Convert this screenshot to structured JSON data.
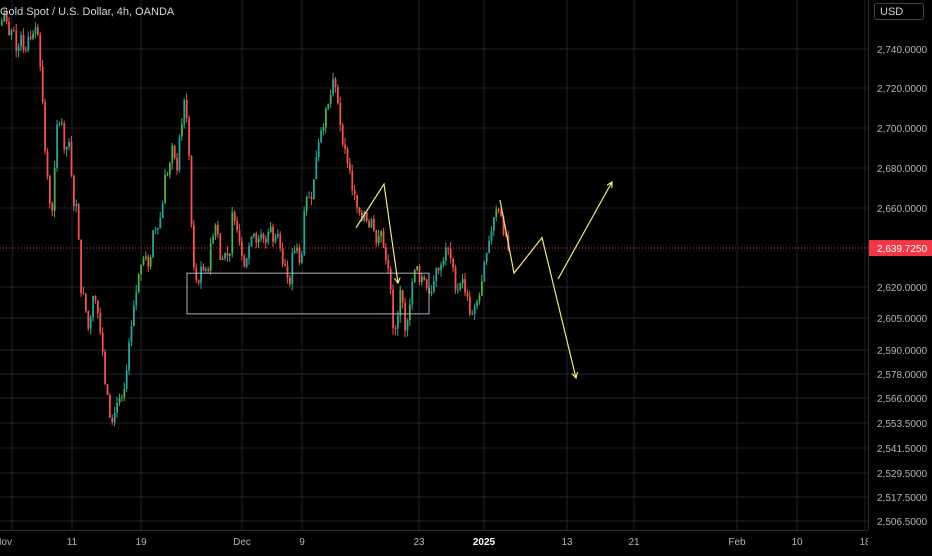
{
  "header": {
    "title": "Gold Spot / U.S. Dollar, 4h, OANDA"
  },
  "price_axis": {
    "currency": "USD"
  },
  "colors": {
    "up": "#26a69a",
    "up_green": "#4caf50",
    "down": "#ef5350",
    "drawing": "#f2e880",
    "current_price_bg": "#f23645",
    "grid": "#1e222d"
  },
  "chart_data": {
    "type": "candlestick",
    "title": "Gold Spot / U.S. Dollar, 4h, OANDA",
    "y_tick_labels": [
      "2,740.0000",
      "2,720.0000",
      "2,700.0000",
      "2,680.0000",
      "2,660.0000",
      "2,620.0000",
      "2,605.0000",
      "2,590.0000",
      "2,578.0000",
      "2,566.0000",
      "2,553.5000",
      "2,541.5000",
      "2,529.5000",
      "2,517.5000",
      "2,506.5000"
    ],
    "y_tick_values": [
      2740,
      2720,
      2700,
      2680,
      2660,
      2620,
      2605,
      2590,
      2578,
      2566,
      2553.5,
      2541.5,
      2529.5,
      2517.5,
      2506.5
    ],
    "current_price": {
      "value": 2639.725,
      "label": "2,639.7250"
    },
    "x_tick_labels": [
      "Nov",
      "11",
      "19",
      "Dec",
      "9",
      "23",
      "2025",
      "13",
      "21",
      "Feb",
      "10",
      "18"
    ],
    "x_tick_bold": [
      false,
      false,
      false,
      false,
      false,
      false,
      true,
      false,
      false,
      false,
      false,
      false
    ],
    "ylim": [
      2500,
      2760
    ],
    "price_path": [
      [
        0,
        2752
      ],
      [
        4,
        2760
      ],
      [
        8,
        2745
      ],
      [
        12,
        2752
      ],
      [
        16,
        2740
      ],
      [
        20,
        2748
      ],
      [
        24,
        2738
      ],
      [
        28,
        2750
      ],
      [
        32,
        2745
      ],
      [
        36,
        2755
      ],
      [
        40,
        2730
      ],
      [
        44,
        2690
      ],
      [
        48,
        2665
      ],
      [
        52,
        2660
      ],
      [
        56,
        2700
      ],
      [
        60,
        2705
      ],
      [
        64,
        2690
      ],
      [
        68,
        2692
      ],
      [
        72,
        2665
      ],
      [
        76,
        2660
      ],
      [
        80,
        2620
      ],
      [
        84,
        2612
      ],
      [
        88,
        2598
      ],
      [
        92,
        2618
      ],
      [
        96,
        2612
      ],
      [
        100,
        2596
      ],
      [
        104,
        2575
      ],
      [
        108,
        2560
      ],
      [
        112,
        2552
      ],
      [
        116,
        2566
      ],
      [
        120,
        2562
      ],
      [
        124,
        2570
      ],
      [
        128,
        2590
      ],
      [
        132,
        2605
      ],
      [
        136,
        2620
      ],
      [
        140,
        2632
      ],
      [
        144,
        2640
      ],
      [
        148,
        2628
      ],
      [
        152,
        2648
      ],
      [
        156,
        2652
      ],
      [
        160,
        2655
      ],
      [
        164,
        2675
      ],
      [
        168,
        2680
      ],
      [
        172,
        2690
      ],
      [
        176,
        2680
      ],
      [
        180,
        2700
      ],
      [
        184,
        2715
      ],
      [
        188,
        2690
      ],
      [
        192,
        2630
      ],
      [
        196,
        2622
      ],
      [
        200,
        2628
      ],
      [
        204,
        2625
      ],
      [
        208,
        2632
      ],
      [
        212,
        2648
      ],
      [
        216,
        2655
      ],
      [
        220,
        2630
      ],
      [
        224,
        2640
      ],
      [
        228,
        2632
      ],
      [
        232,
        2660
      ],
      [
        236,
        2652
      ],
      [
        240,
        2640
      ],
      [
        244,
        2632
      ],
      [
        248,
        2640
      ],
      [
        252,
        2650
      ],
      [
        256,
        2642
      ],
      [
        260,
        2648
      ],
      [
        264,
        2640
      ],
      [
        268,
        2652
      ],
      [
        272,
        2645
      ],
      [
        276,
        2650
      ],
      [
        280,
        2638
      ],
      [
        284,
        2630
      ],
      [
        288,
        2618
      ],
      [
        292,
        2638
      ],
      [
        296,
        2640
      ],
      [
        300,
        2632
      ],
      [
        304,
        2660
      ],
      [
        308,
        2666
      ],
      [
        312,
        2668
      ],
      [
        316,
        2690
      ],
      [
        320,
        2700
      ],
      [
        324,
        2705
      ],
      [
        328,
        2712
      ],
      [
        332,
        2722
      ],
      [
        336,
        2718
      ],
      [
        340,
        2700
      ],
      [
        344,
        2688
      ],
      [
        348,
        2682
      ],
      [
        352,
        2668
      ],
      [
        356,
        2660
      ],
      [
        360,
        2652
      ],
      [
        364,
        2660
      ],
      [
        368,
        2650
      ],
      [
        372,
        2655
      ],
      [
        376,
        2640
      ],
      [
        380,
        2648
      ],
      [
        384,
        2638
      ],
      [
        388,
        2630
      ],
      [
        392,
        2600
      ],
      [
        396,
        2598
      ],
      [
        400,
        2625
      ],
      [
        404,
        2600
      ],
      [
        408,
        2610
      ],
      [
        412,
        2625
      ],
      [
        416,
        2630
      ],
      [
        420,
        2622
      ],
      [
        424,
        2625
      ],
      [
        428,
        2618
      ],
      [
        432,
        2620
      ],
      [
        436,
        2628
      ],
      [
        440,
        2630
      ],
      [
        444,
        2638
      ],
      [
        448,
        2638
      ],
      [
        452,
        2628
      ],
      [
        456,
        2618
      ],
      [
        460,
        2625
      ],
      [
        464,
        2620
      ],
      [
        468,
        2610
      ],
      [
        472,
        2605
      ],
      [
        476,
        2612
      ],
      [
        480,
        2618
      ],
      [
        484,
        2632
      ],
      [
        488,
        2640
      ],
      [
        492,
        2655
      ],
      [
        496,
        2662
      ],
      [
        500,
        2658
      ],
      [
        504,
        2645
      ],
      [
        508,
        2638
      ]
    ],
    "drawings": {
      "box": {
        "t0": 187,
        "t1": 429,
        "high": 2627,
        "low": 2607
      },
      "polyline_top": [
        [
          356,
          2650
        ],
        [
          384,
          2672
        ],
        [
          398,
          2622
        ]
      ],
      "polyline_right": [
        [
          500,
          2664
        ],
        [
          514,
          2627
        ],
        [
          542,
          2645
        ],
        [
          576,
          2576
        ]
      ],
      "polyline_right2": [
        [
          558,
          2624
        ],
        [
          612,
          2673
        ]
      ]
    }
  }
}
